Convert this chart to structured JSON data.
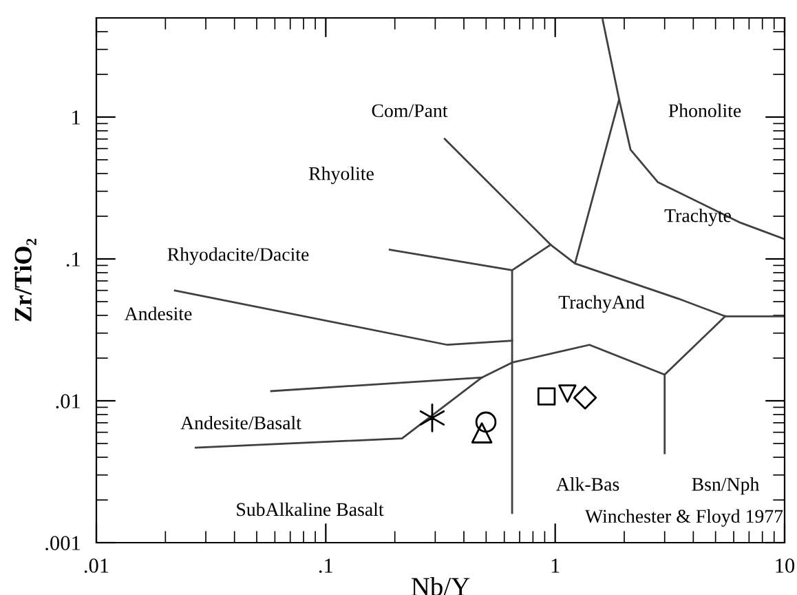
{
  "chart_data": {
    "type": "line",
    "xlabel": "Nb/Y",
    "ylabel": "Zr/TiO₂",
    "log": "xy",
    "grid": false,
    "legend": false,
    "xlim": [
      0.01,
      10
    ],
    "ylim": [
      0.001,
      5
    ],
    "xticks": [
      {
        "value": 0.01,
        "label": ".01"
      },
      {
        "value": 0.1,
        "label": ".1"
      },
      {
        "value": 1,
        "label": "1"
      },
      {
        "value": 10,
        "label": "10"
      },
      {
        "value": 0.02,
        "label": null
      },
      {
        "value": 0.03,
        "label": null
      },
      {
        "value": 0.04,
        "label": null
      },
      {
        "value": 0.05,
        "label": null
      },
      {
        "value": 0.06,
        "label": null
      },
      {
        "value": 0.07,
        "label": null
      },
      {
        "value": 0.08,
        "label": null
      },
      {
        "value": 0.09,
        "label": null
      },
      {
        "value": 0.2,
        "label": null
      },
      {
        "value": 0.3,
        "label": null
      },
      {
        "value": 0.4,
        "label": null
      },
      {
        "value": 0.5,
        "label": null
      },
      {
        "value": 0.6,
        "label": null
      },
      {
        "value": 0.7,
        "label": null
      },
      {
        "value": 0.8,
        "label": null
      },
      {
        "value": 0.9,
        "label": null
      },
      {
        "value": 2,
        "label": null
      },
      {
        "value": 3,
        "label": null
      },
      {
        "value": 4,
        "label": null
      },
      {
        "value": 5,
        "label": null
      },
      {
        "value": 6,
        "label": null
      },
      {
        "value": 7,
        "label": null
      },
      {
        "value": 8,
        "label": null
      },
      {
        "value": 9,
        "label": null
      }
    ],
    "yticks": [
      {
        "value": 0.001,
        "label": ".001"
      },
      {
        "value": 0.01,
        "label": ".01"
      },
      {
        "value": 0.1,
        "label": ".1"
      },
      {
        "value": 1,
        "label": "1"
      },
      {
        "value": 0.002,
        "label": null
      },
      {
        "value": 0.003,
        "label": null
      },
      {
        "value": 0.004,
        "label": null
      },
      {
        "value": 0.005,
        "label": null
      },
      {
        "value": 0.006,
        "label": null
      },
      {
        "value": 0.007,
        "label": null
      },
      {
        "value": 0.008,
        "label": null
      },
      {
        "value": 0.009,
        "label": null
      },
      {
        "value": 0.02,
        "label": null
      },
      {
        "value": 0.03,
        "label": null
      },
      {
        "value": 0.04,
        "label": null
      },
      {
        "value": 0.05,
        "label": null
      },
      {
        "value": 0.06,
        "label": null
      },
      {
        "value": 0.07,
        "label": null
      },
      {
        "value": 0.08,
        "label": null
      },
      {
        "value": 0.09,
        "label": null
      },
      {
        "value": 0.2,
        "label": null
      },
      {
        "value": 0.3,
        "label": null
      },
      {
        "value": 0.4,
        "label": null
      },
      {
        "value": 0.5,
        "label": null
      },
      {
        "value": 0.6,
        "label": null
      },
      {
        "value": 0.7,
        "label": null
      },
      {
        "value": 0.8,
        "label": null
      },
      {
        "value": 0.9,
        "label": null
      },
      {
        "value": 2,
        "label": null
      },
      {
        "value": 3,
        "label": null
      },
      {
        "value": 4,
        "label": null
      }
    ],
    "series": [
      {
        "color": "#404040",
        "x": [
          0.022,
          0.339,
          0.649
        ],
        "values": [
          0.0599,
          0.0248,
          0.0265
        ]
      },
      {
        "color": "#404040",
        "x": [
          0.19,
          0.649,
          0.955
        ],
        "values": [
          0.116,
          0.0832,
          0.126
        ]
      },
      {
        "color": "#404040",
        "x": [
          0.649,
          0.649
        ],
        "values": [
          0.0832,
          0.00162
        ]
      },
      {
        "color": "#404040",
        "x": [
          0.33,
          0.955,
          1.22,
          3.45,
          5.51,
          10
        ],
        "values": [
          0.701,
          0.126,
          0.0929,
          0.0524,
          0.0394,
          0.0394
        ]
      },
      {
        "color": "#404040",
        "x": [
          1.22,
          1.9
        ],
        "values": [
          0.0929,
          1.33
        ]
      },
      {
        "color": "#404040",
        "x": [
          1.61,
          1.9,
          2.13,
          2.8,
          6.42,
          10
        ],
        "values": [
          4.86,
          1.33,
          0.589,
          0.348,
          0.18,
          0.138
        ]
      },
      {
        "color": "#404040",
        "x": [
          5.51,
          3.0,
          1.41,
          0.649,
          0.479,
          0.215,
          0.0271
        ],
        "values": [
          0.0394,
          0.0153,
          0.0248,
          0.0186,
          0.0146,
          0.00543,
          0.00467
        ]
      },
      {
        "color": "#404040",
        "x": [
          0.0578,
          0.479
        ],
        "values": [
          0.0117,
          0.0146
        ]
      },
      {
        "color": "#404040",
        "x": [
          3.0,
          3.0
        ],
        "values": [
          0.0153,
          0.00427
        ]
      },
      {
        "type": "scatter",
        "marker": "cross",
        "color": "#000000",
        "x": [
          0.291
        ],
        "values": [
          0.00757
        ]
      },
      {
        "type": "scatter",
        "marker": "circle",
        "color": "#000000",
        "x": [
          0.499
        ],
        "values": [
          0.00708
        ]
      },
      {
        "type": "scatter",
        "marker": "triangle",
        "color": "#000000",
        "x": [
          0.479
        ],
        "values": [
          0.00594
        ]
      },
      {
        "type": "scatter",
        "marker": "square",
        "color": "#000000",
        "x": [
          0.917
        ],
        "values": [
          0.01074
        ]
      },
      {
        "type": "scatter",
        "marker": "triangle_down",
        "color": "#000000",
        "x": [
          1.13
        ],
        "values": [
          0.01125
        ]
      },
      {
        "type": "scatter",
        "marker": "diamond",
        "color": "#000000",
        "x": [
          1.35
        ],
        "values": [
          0.01052
        ]
      }
    ],
    "annotations": [
      "Com/Pant",
      "Phonolite",
      "Rhyolite",
      "Trachyte",
      "Rhyodacite/Dacite",
      "Andesite",
      "TrachyAnd",
      "Andesite/Basalt",
      "Alk-Bas",
      "Bsn/Nph",
      "SubAlkaline Basalt",
      "Winchester & Floyd 1977"
    ]
  }
}
